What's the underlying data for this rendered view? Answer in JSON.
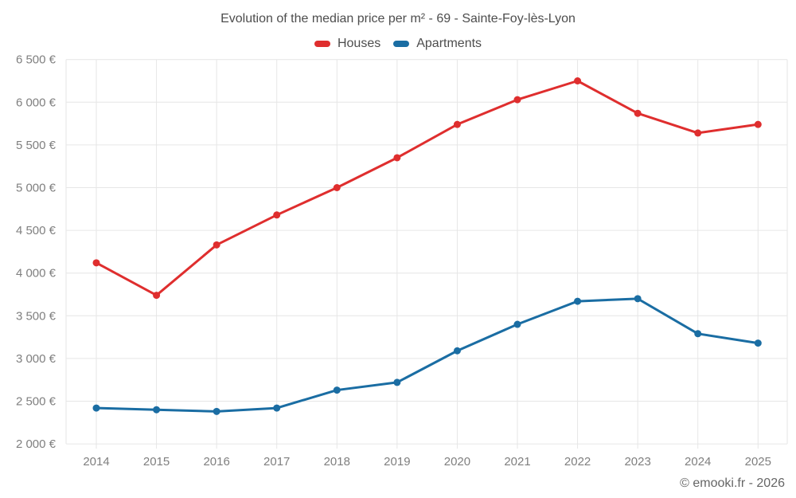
{
  "title": "Evolution of the median price per m² - 69 - Sainte-Foy-lès-Lyon",
  "footer": "© emooki.fr - 2026",
  "colors": {
    "houses": "#df2e2e",
    "apartments": "#1a6da3",
    "grid": "#e6e6e6",
    "axis_text": "#7f7f7f",
    "title_text": "#4d4d4d"
  },
  "chart_data": {
    "type": "line",
    "categories": [
      "2014",
      "2015",
      "2016",
      "2017",
      "2018",
      "2019",
      "2020",
      "2021",
      "2022",
      "2023",
      "2024",
      "2025"
    ],
    "series": [
      {
        "name": "Houses",
        "color": "#df2e2e",
        "values": [
          4120,
          3740,
          4330,
          4680,
          5000,
          5350,
          5740,
          6030,
          6250,
          5870,
          5640,
          5740
        ]
      },
      {
        "name": "Apartments",
        "color": "#1a6da3",
        "values": [
          2420,
          2400,
          2380,
          2420,
          2630,
          2720,
          3090,
          3400,
          3670,
          3700,
          3290,
          3180
        ]
      }
    ],
    "title": "Evolution of the median price per m² - 69 - Sainte-Foy-lès-Lyon",
    "xlabel": "",
    "ylabel": "",
    "ylim": [
      2000,
      6500
    ],
    "ytick_step": 500,
    "y_ticks": [
      {
        "value": 2000,
        "label": "2 000 €"
      },
      {
        "value": 2500,
        "label": "2 500 €"
      },
      {
        "value": 3000,
        "label": "3 000 €"
      },
      {
        "value": 3500,
        "label": "3 500 €"
      },
      {
        "value": 4000,
        "label": "4 000 €"
      },
      {
        "value": 4500,
        "label": "4 500 €"
      },
      {
        "value": 5000,
        "label": "5 000 €"
      },
      {
        "value": 5500,
        "label": "5 500 €"
      },
      {
        "value": 6000,
        "label": "6 000 €"
      },
      {
        "value": 6500,
        "label": "6 500 €"
      }
    ],
    "grid": true,
    "legend_position": "top"
  }
}
